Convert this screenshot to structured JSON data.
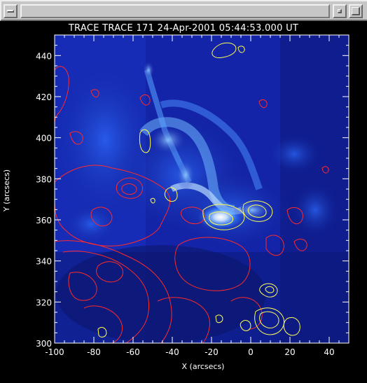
{
  "window": {
    "controls": {
      "menu": "window-menu-icon",
      "minimize": "minimize-icon",
      "maximize": "maximize-icon"
    }
  },
  "chart_data": {
    "type": "heatmap",
    "title": "TRACE TRACE 171 24-Apr-2001 05:44:53.000 UT",
    "xlabel": "X (arcsecs)",
    "ylabel": "Y (arcsecs)",
    "xlim": [
      -100,
      50
    ],
    "ylim": [
      300,
      450
    ],
    "xticks": [
      -100,
      -80,
      -60,
      -40,
      -20,
      0,
      20,
      40
    ],
    "yticks": [
      300,
      320,
      340,
      360,
      380,
      400,
      420,
      440
    ],
    "colormap": "blue-white",
    "contours": [
      {
        "color": "#ff2a2a",
        "description": "red contours"
      },
      {
        "color": "#ffff55",
        "description": "yellow contours"
      }
    ],
    "colors": {
      "background": "#000000",
      "frame": "#ffffff",
      "red_contour": "#ff2a2a",
      "yellow_contour": "#ffff55"
    }
  }
}
